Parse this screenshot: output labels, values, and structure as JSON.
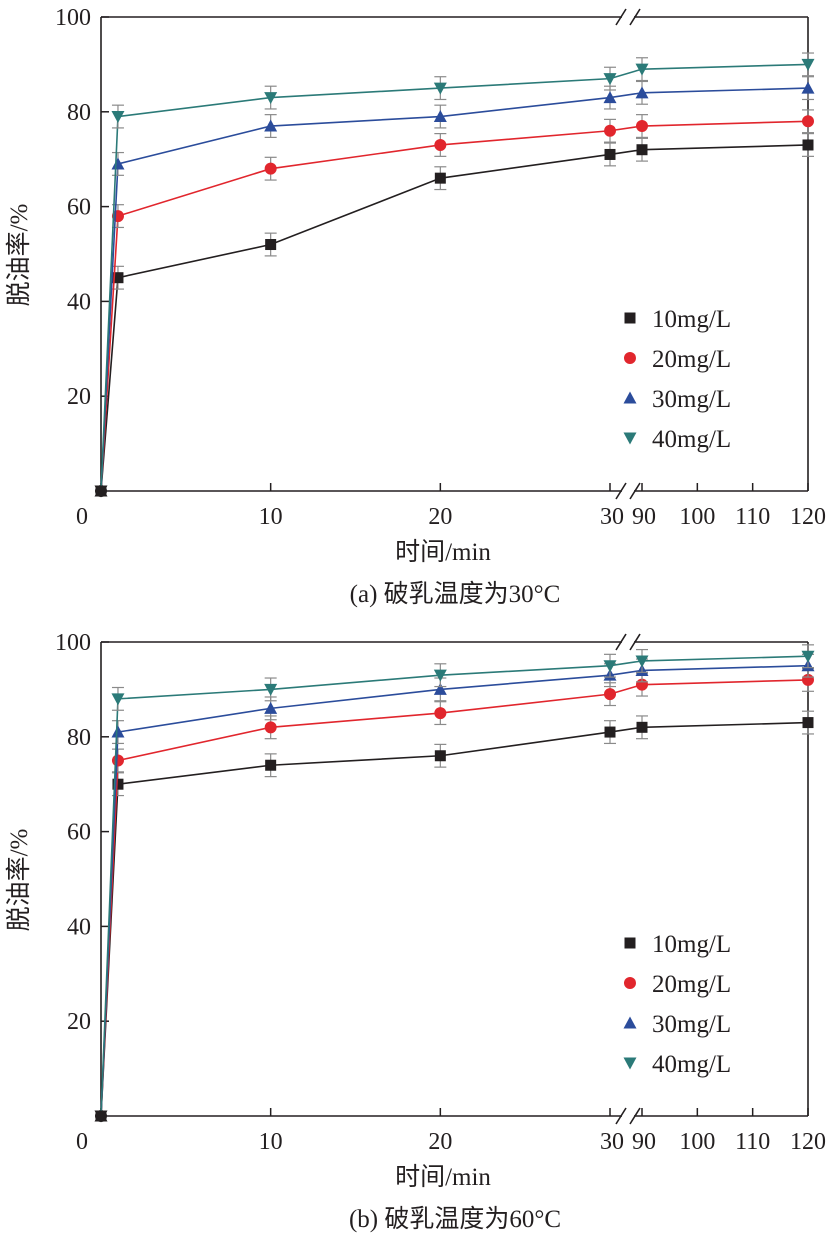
{
  "chart_data": [
    {
      "type": "line",
      "panel": "a",
      "caption": "(a) 破乳温度为30°C",
      "xlabel": "时间/min",
      "ylabel": "脱油率/%",
      "ylim": [
        0,
        100
      ],
      "y_ticks": [
        20,
        40,
        60,
        80,
        100
      ],
      "x_ticks": [
        "0",
        "10",
        "20",
        "30",
        "90",
        "100",
        "110",
        "120"
      ],
      "x_axis_break": "between 30 and 90 min",
      "legend_position": "lower-right",
      "x": [
        0,
        1,
        10,
        20,
        30,
        90,
        120
      ],
      "series": [
        {
          "name": "10mg/L",
          "marker": "square",
          "color": "#231f20",
          "values": [
            0,
            45,
            52,
            66,
            71,
            72,
            73
          ],
          "error": 1.5
        },
        {
          "name": "20mg/L",
          "marker": "circle",
          "color": "#e1262d",
          "values": [
            0,
            58,
            68,
            73,
            76,
            77,
            78
          ],
          "error": 1.5
        },
        {
          "name": "30mg/L",
          "marker": "triangle-up",
          "color": "#2b4c9b",
          "values": [
            0,
            69,
            77,
            79,
            83,
            84,
            85
          ],
          "error": 1.5
        },
        {
          "name": "40mg/L",
          "marker": "triangle-down",
          "color": "#2b7a78",
          "values": [
            0,
            79,
            83,
            85,
            87,
            89,
            90
          ],
          "error": 1.5
        }
      ]
    },
    {
      "type": "line",
      "panel": "b",
      "caption": "(b) 破乳温度为60°C",
      "xlabel": "时间/min",
      "ylabel": "脱油率/%",
      "ylim": [
        0,
        100
      ],
      "y_ticks": [
        20,
        40,
        60,
        80,
        100
      ],
      "x_ticks": [
        "0",
        "10",
        "20",
        "30",
        "90",
        "100",
        "110",
        "120"
      ],
      "x_axis_break": "between 30 and 90 min",
      "legend_position": "lower-right",
      "x": [
        0,
        1,
        10,
        20,
        30,
        90,
        120
      ],
      "series": [
        {
          "name": "10mg/L",
          "marker": "square",
          "color": "#231f20",
          "values": [
            0,
            70,
            74,
            76,
            81,
            82,
            83
          ],
          "error": 1.5
        },
        {
          "name": "20mg/L",
          "marker": "circle",
          "color": "#e1262d",
          "values": [
            0,
            75,
            82,
            85,
            89,
            91,
            92
          ],
          "error": 1.5
        },
        {
          "name": "30mg/L",
          "marker": "triangle-up",
          "color": "#2b4c9b",
          "values": [
            0,
            81,
            86,
            90,
            93,
            94,
            95
          ],
          "error": 1.5
        },
        {
          "name": "40mg/L",
          "marker": "triangle-down",
          "color": "#2b7a78",
          "values": [
            0,
            88,
            90,
            93,
            95,
            96,
            97
          ],
          "error": 1.5
        }
      ]
    }
  ]
}
